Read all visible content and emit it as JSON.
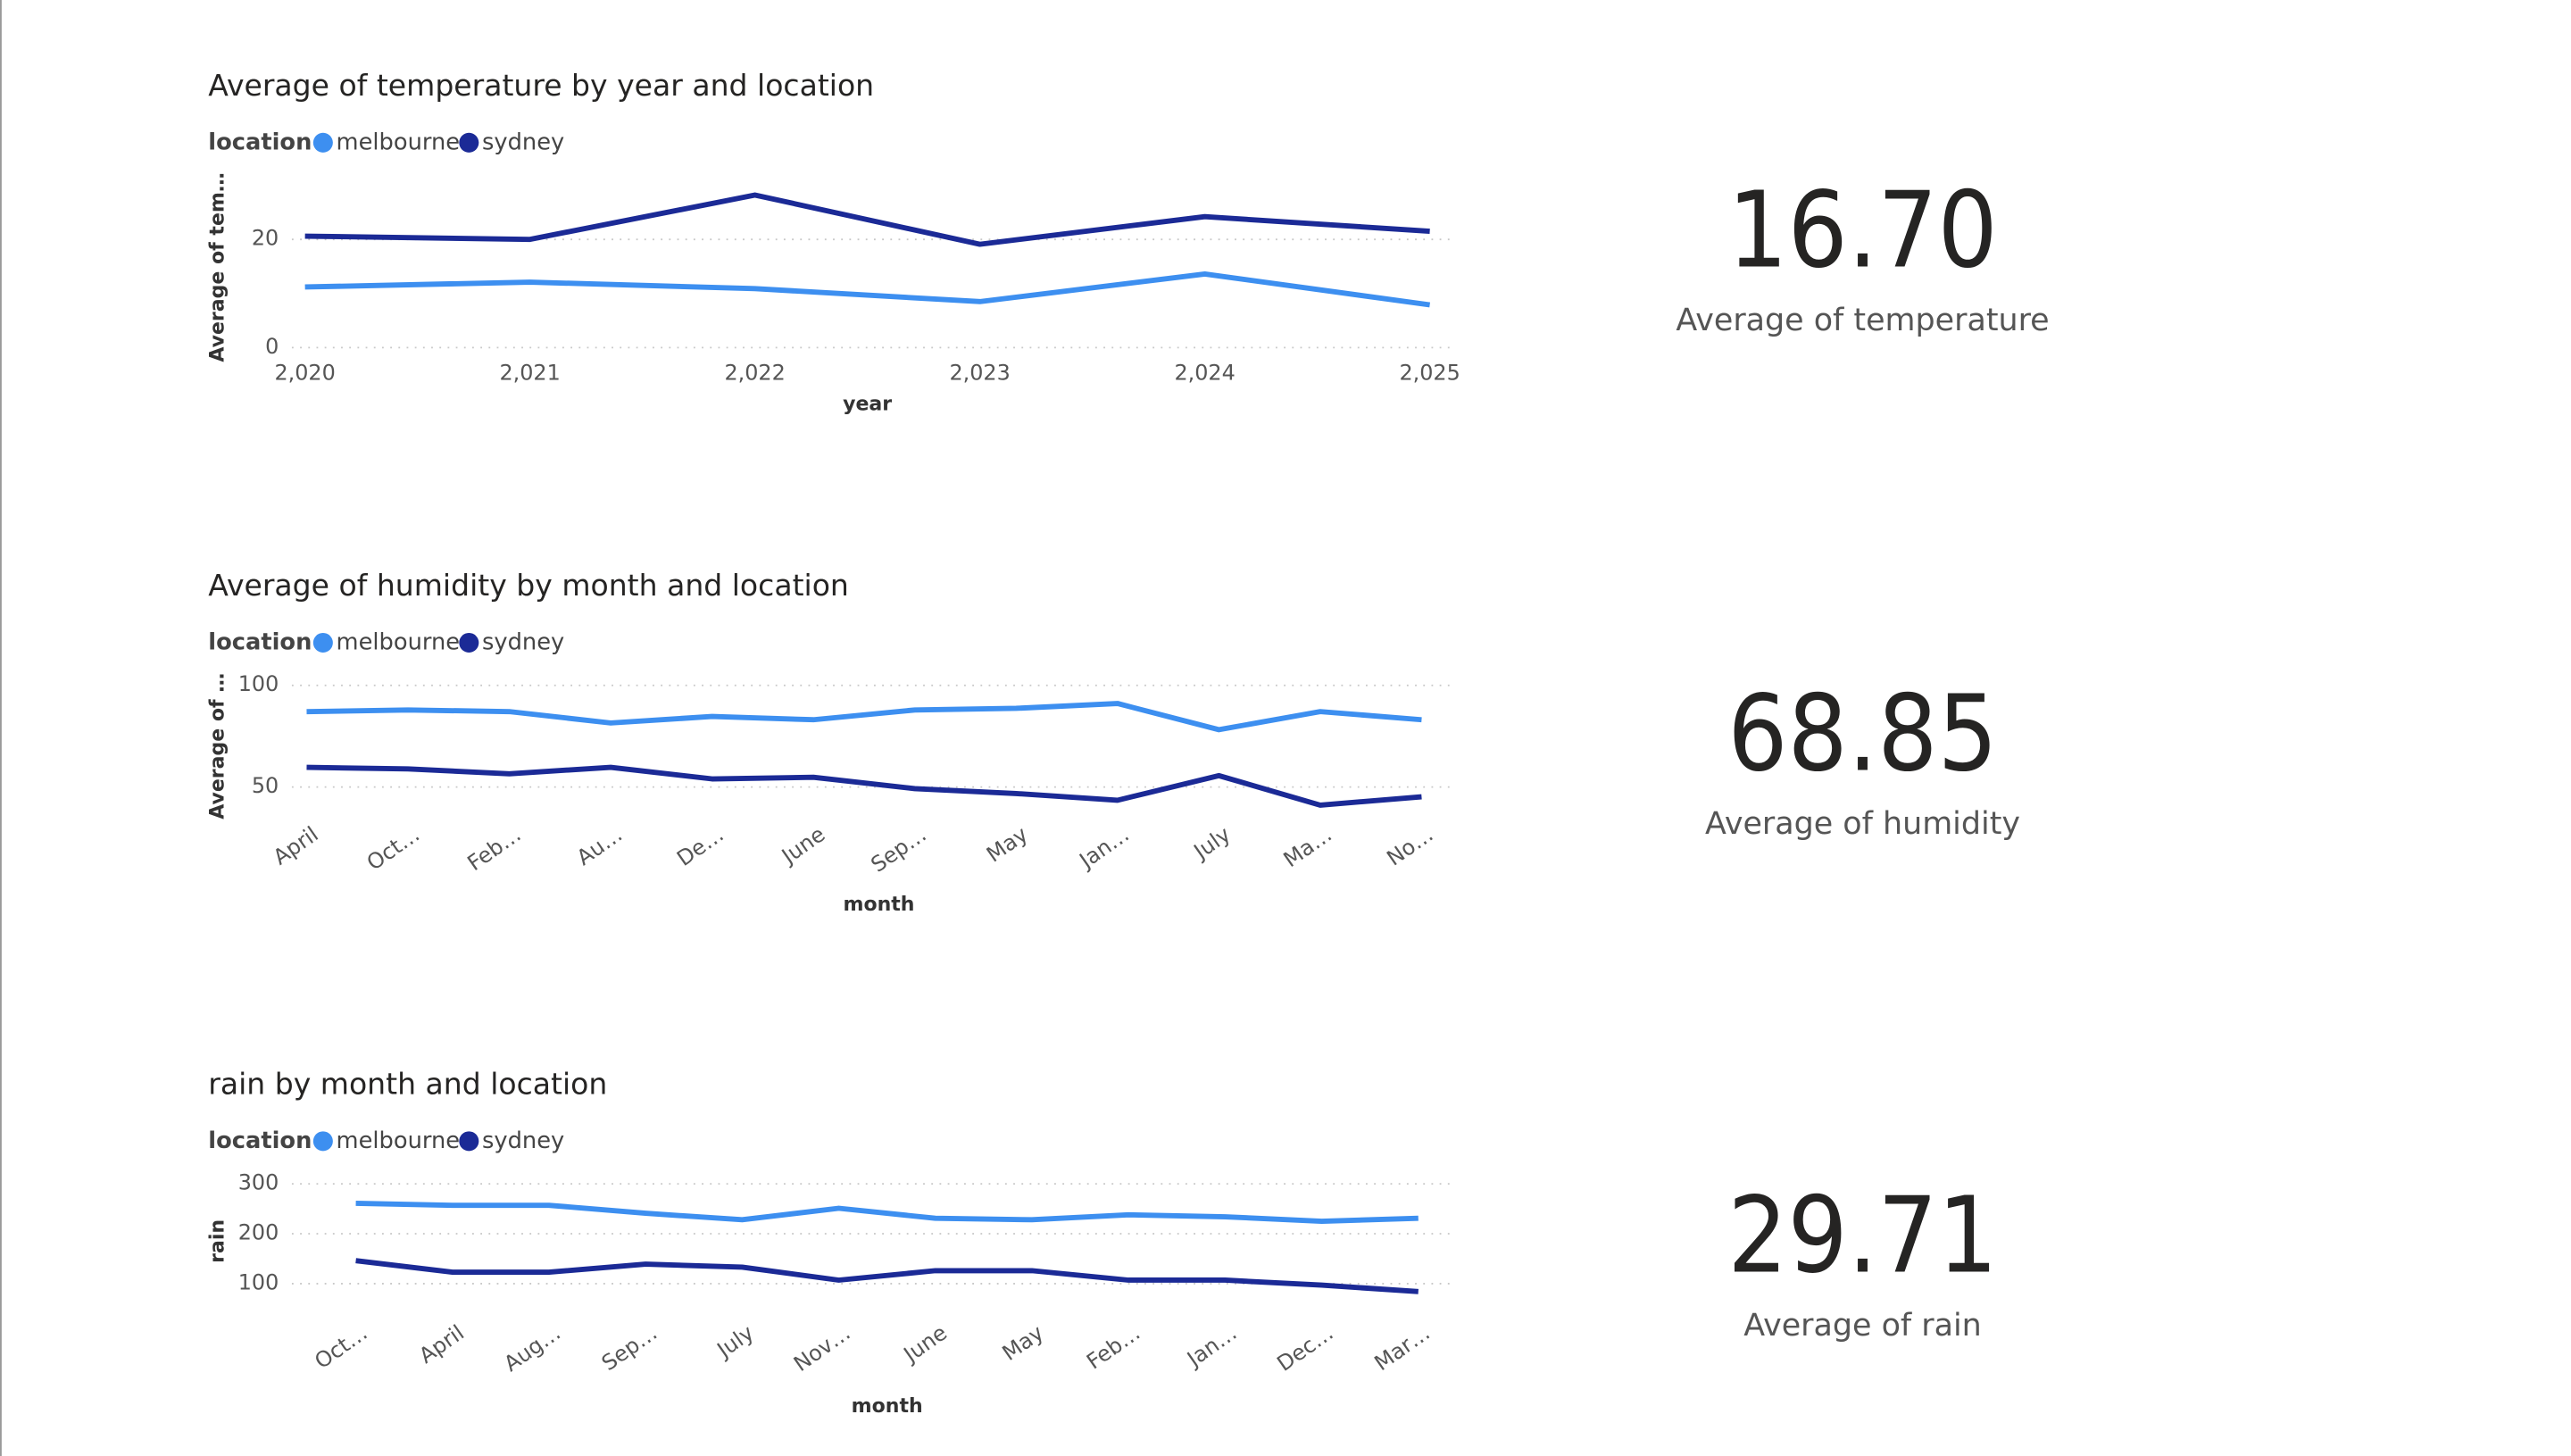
{
  "chart_data": [
    {
      "type": "line",
      "title": "Average of temperature by year and location",
      "legend_title": "location",
      "y_label": "Average of tem…",
      "x_label": "year",
      "x": [
        2020,
        2021,
        2022,
        2023,
        2024,
        2025
      ],
      "xlim": [
        2020,
        2025
      ],
      "xticks": [
        {
          "value": 2020,
          "label": "2,020"
        },
        {
          "value": 2021,
          "label": "2,021"
        },
        {
          "value": 2022,
          "label": "2,022"
        },
        {
          "value": 2023,
          "label": "2,023"
        },
        {
          "value": 2024,
          "label": "2,024"
        },
        {
          "value": 2025,
          "label": "2,025"
        }
      ],
      "ylim": [
        0,
        30
      ],
      "yticks": [
        0,
        20
      ],
      "grid": true,
      "series": [
        {
          "name": "melbourne",
          "color": "#3d8ff0",
          "values": [
            11.2,
            12.1,
            10.9,
            8.5,
            13.6,
            7.9
          ]
        },
        {
          "name": "sydney",
          "color": "#1b2a96",
          "values": [
            20.6,
            20.0,
            28.2,
            19.1,
            24.2,
            21.5
          ]
        }
      ]
    },
    {
      "type": "line",
      "title": "Average of humidity by month and location",
      "legend_title": "location",
      "y_label": "Average of …",
      "x_label": "month",
      "categories": [
        "April",
        "Oct…",
        "Feb…",
        "Au…",
        "De…",
        "June",
        "Sep…",
        "May",
        "Jan…",
        "July",
        "Ma…",
        "No…"
      ],
      "ylim": [
        40,
        100
      ],
      "yticks": [
        50,
        100
      ],
      "grid": true,
      "series": [
        {
          "name": "melbourne",
          "color": "#3d8ff0",
          "values": [
            87.1,
            87.9,
            87.1,
            81.5,
            84.7,
            83.1,
            87.9,
            88.7,
            91.1,
            78.2,
            87.1,
            83.1
          ]
        },
        {
          "name": "sydney",
          "color": "#1b2a96",
          "values": [
            59.7,
            58.9,
            56.5,
            59.7,
            54.0,
            54.8,
            49.2,
            46.8,
            43.5,
            55.6,
            41.1,
            45.2
          ]
        }
      ]
    },
    {
      "type": "line",
      "title": "rain by month and location",
      "legend_title": "location",
      "y_label": "rain",
      "x_label": "month",
      "categories": [
        "Oct…",
        "April",
        "Aug…",
        "Sep…",
        "July",
        "Nov…",
        "June",
        "May",
        "Feb…",
        "Jan…",
        "Dec…",
        "Mar…"
      ],
      "ylim": [
        70,
        300
      ],
      "yticks": [
        100,
        200,
        300
      ],
      "grid": true,
      "series": [
        {
          "name": "melbourne",
          "color": "#3d8ff0",
          "values": [
            261,
            257,
            257,
            241,
            228,
            251,
            231,
            228,
            238,
            234,
            225,
            231
          ]
        },
        {
          "name": "sydney",
          "color": "#1b2a96",
          "values": [
            146,
            123,
            123,
            139,
            133,
            107,
            126,
            126,
            107,
            107,
            97,
            84
          ]
        }
      ]
    }
  ],
  "cards": [
    {
      "value": "16.70",
      "label": "Average of temperature"
    },
    {
      "value": "68.85",
      "label": "Average of humidity"
    },
    {
      "value": "29.71",
      "label": "Average of rain"
    }
  ]
}
